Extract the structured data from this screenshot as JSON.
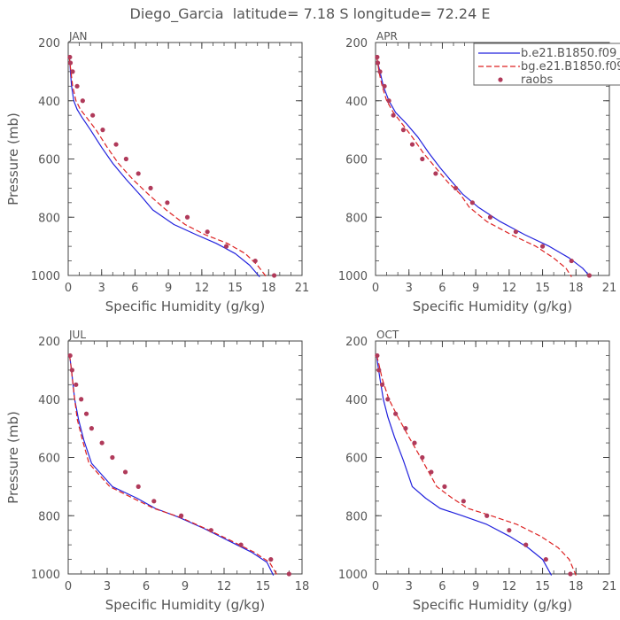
{
  "figure": {
    "title": "Diego_Garcia  latitude= 7.18 S longitude= 72.24 E"
  },
  "legend": {
    "items": [
      {
        "label": "b.e21.B1850.f09_",
        "color": "#2222dd",
        "style": "solid"
      },
      {
        "label": "bg.e21.B1850.f09",
        "color": "#dd2222",
        "style": "dashed"
      },
      {
        "label": "raobs",
        "color": "#b03a5a",
        "style": "dot"
      }
    ]
  },
  "chart_data": [
    {
      "type": "line",
      "panel": "JAN",
      "xlabel": "Specific Humidity (g/kg)",
      "ylabel": "Pressure (mb)",
      "xlim": [
        0,
        21
      ],
      "ylim": [
        1000,
        200
      ],
      "y_inverted": true,
      "xticks": [
        "0",
        "3",
        "6",
        "9",
        "12",
        "15",
        "18",
        "21"
      ],
      "yticks": [
        "200",
        "400",
        "600",
        "800",
        "1000"
      ],
      "series": [
        {
          "name": "b.e21.B1850.f09_",
          "color": "#2222dd",
          "style": "solid",
          "x": [
            0.1,
            0.15,
            0.2,
            0.3,
            0.5,
            0.8,
            1.2,
            2.0,
            3.0,
            4.0,
            5.2,
            6.5,
            7.6,
            9.5,
            11.5,
            13.3,
            15.0,
            16.3,
            17.2
          ],
          "y": [
            250,
            270,
            300,
            350,
            400,
            430,
            455,
            500,
            560,
            615,
            670,
            725,
            775,
            825,
            860,
            890,
            925,
            965,
            1005
          ]
        },
        {
          "name": "bg.e21.B1850.f09",
          "color": "#dd2222",
          "style": "dashed",
          "x": [
            0.1,
            0.15,
            0.25,
            0.4,
            0.7,
            1.1,
            1.6,
            2.5,
            3.5,
            4.5,
            5.8,
            7.3,
            8.8,
            10.5,
            12.3,
            14.3,
            15.9,
            17.0,
            17.8
          ],
          "y": [
            250,
            270,
            300,
            350,
            400,
            430,
            455,
            500,
            560,
            615,
            670,
            725,
            775,
            825,
            860,
            890,
            925,
            965,
            1005
          ]
        },
        {
          "name": "raobs",
          "color": "#b03a5a",
          "style": "dot",
          "x": [
            0.15,
            0.2,
            0.4,
            0.8,
            1.3,
            2.2,
            3.1,
            4.3,
            5.2,
            6.3,
            7.4,
            8.9,
            10.7,
            12.5,
            14.2,
            16.8,
            18.5
          ],
          "y": [
            250,
            270,
            300,
            350,
            400,
            450,
            500,
            550,
            600,
            650,
            700,
            750,
            800,
            850,
            900,
            950,
            1000
          ]
        }
      ]
    },
    {
      "type": "line",
      "panel": "APR",
      "xlabel": "Specific Humidity (g/kg)",
      "ylabel": "Pressure (mb)",
      "xlim": [
        0,
        21
      ],
      "ylim": [
        1000,
        200
      ],
      "y_inverted": true,
      "xticks": [
        "0",
        "3",
        "6",
        "9",
        "12",
        "15",
        "18",
        "21"
      ],
      "yticks": [
        "200",
        "400",
        "600",
        "800",
        "1000"
      ],
      "series": [
        {
          "name": "b.e21.B1850.f09_",
          "color": "#2222dd",
          "style": "solid",
          "x": [
            0.1,
            0.2,
            0.4,
            0.7,
            1.2,
            1.8,
            2.8,
            3.8,
            4.8,
            5.8,
            6.9,
            7.8,
            9.2,
            11.2,
            13.4,
            15.6,
            17.4,
            18.6,
            19.3
          ],
          "y": [
            250,
            270,
            300,
            350,
            400,
            440,
            480,
            525,
            580,
            630,
            680,
            720,
            765,
            815,
            860,
            900,
            940,
            975,
            1005
          ]
        },
        {
          "name": "bg.e21.B1850.f09",
          "color": "#dd2222",
          "style": "dashed",
          "x": [
            0.1,
            0.2,
            0.3,
            0.6,
            1.0,
            1.6,
            2.4,
            3.3,
            4.3,
            5.4,
            6.5,
            7.6,
            8.4,
            10.0,
            12.2,
            14.4,
            16.0,
            17.1,
            17.6
          ],
          "y": [
            250,
            270,
            300,
            350,
            400,
            440,
            480,
            525,
            580,
            630,
            680,
            720,
            765,
            815,
            860,
            900,
            940,
            975,
            1005
          ]
        },
        {
          "name": "raobs",
          "color": "#b03a5a",
          "style": "dot",
          "x": [
            0.15,
            0.2,
            0.4,
            0.8,
            1.2,
            1.6,
            2.5,
            3.3,
            4.2,
            5.4,
            7.2,
            8.7,
            10.3,
            12.6,
            15.0,
            17.6,
            19.2
          ],
          "y": [
            250,
            270,
            300,
            350,
            400,
            450,
            500,
            550,
            600,
            650,
            700,
            750,
            800,
            850,
            900,
            950,
            1000
          ]
        }
      ]
    },
    {
      "type": "line",
      "panel": "JUL",
      "xlabel": "Specific Humidity (g/kg)",
      "ylabel": "Pressure (mb)",
      "xlim": [
        0,
        18
      ],
      "ylim": [
        1000,
        200
      ],
      "y_inverted": true,
      "xticks": [
        "0",
        "3",
        "6",
        "9",
        "12",
        "15",
        "18"
      ],
      "yticks": [
        "200",
        "400",
        "600",
        "800",
        "1000"
      ],
      "series": [
        {
          "name": "b.e21.B1850.f09_",
          "color": "#2222dd",
          "style": "solid",
          "x": [
            0.1,
            0.2,
            0.3,
            0.5,
            0.8,
            1.2,
            1.8,
            3.4,
            5.3,
            6.7,
            8.5,
            10.5,
            12.3,
            14.1,
            15.3,
            15.8
          ],
          "y": [
            250,
            280,
            320,
            400,
            470,
            540,
            620,
            700,
            740,
            775,
            805,
            845,
            885,
            925,
            960,
            1005
          ]
        },
        {
          "name": "bg.e21.B1850.f09",
          "color": "#dd2222",
          "style": "dashed",
          "x": [
            0.1,
            0.2,
            0.3,
            0.5,
            0.7,
            1.1,
            1.6,
            3.2,
            5.0,
            6.6,
            8.6,
            10.6,
            12.5,
            14.3,
            15.5,
            16.1
          ],
          "y": [
            250,
            280,
            320,
            400,
            470,
            540,
            620,
            700,
            740,
            775,
            805,
            845,
            885,
            925,
            960,
            1005
          ]
        },
        {
          "name": "raobs",
          "color": "#b03a5a",
          "style": "dot",
          "x": [
            0.15,
            0.3,
            0.6,
            1.0,
            1.4,
            1.8,
            2.6,
            3.4,
            4.4,
            5.4,
            6.6,
            8.7,
            11.0,
            13.3,
            15.6,
            17.0
          ],
          "y": [
            250,
            300,
            350,
            400,
            450,
            500,
            550,
            600,
            650,
            700,
            750,
            800,
            850,
            900,
            950,
            1000
          ]
        }
      ]
    },
    {
      "type": "line",
      "panel": "OCT",
      "xlabel": "Specific Humidity (g/kg)",
      "ylabel": "Pressure (mb)",
      "xlim": [
        0,
        21
      ],
      "ylim": [
        1000,
        200
      ],
      "y_inverted": true,
      "xticks": [
        "0",
        "3",
        "6",
        "9",
        "12",
        "15",
        "18",
        "21"
      ],
      "yticks": [
        "200",
        "400",
        "600",
        "800",
        "1000"
      ],
      "series": [
        {
          "name": "b.e21.B1850.f09_",
          "color": "#2222dd",
          "style": "solid",
          "x": [
            0.1,
            0.2,
            0.4,
            0.7,
            1.1,
            1.7,
            2.5,
            3.3,
            4.5,
            5.8,
            7.8,
            10.0,
            12.0,
            13.7,
            15.0,
            15.8
          ],
          "y": [
            250,
            280,
            330,
            400,
            460,
            530,
            610,
            700,
            740,
            775,
            800,
            830,
            870,
            910,
            950,
            1005
          ]
        },
        {
          "name": "bg.e21.B1850.f09",
          "color": "#dd2222",
          "style": "dashed",
          "x": [
            0.1,
            0.3,
            0.6,
            1.2,
            2.0,
            3.0,
            4.2,
            5.5,
            6.9,
            8.3,
            10.4,
            12.7,
            14.8,
            16.4,
            17.4,
            18.0
          ],
          "y": [
            250,
            280,
            330,
            400,
            460,
            530,
            610,
            700,
            740,
            775,
            800,
            830,
            870,
            910,
            950,
            1005
          ]
        },
        {
          "name": "raobs",
          "color": "#b03a5a",
          "style": "dot",
          "x": [
            0.15,
            0.3,
            0.6,
            1.1,
            1.8,
            2.7,
            3.5,
            4.2,
            5.0,
            6.2,
            7.9,
            10.0,
            12.0,
            13.5,
            15.3,
            17.5
          ],
          "y": [
            250,
            300,
            350,
            400,
            450,
            500,
            550,
            600,
            650,
            700,
            750,
            800,
            850,
            900,
            950,
            1000
          ]
        }
      ]
    }
  ]
}
